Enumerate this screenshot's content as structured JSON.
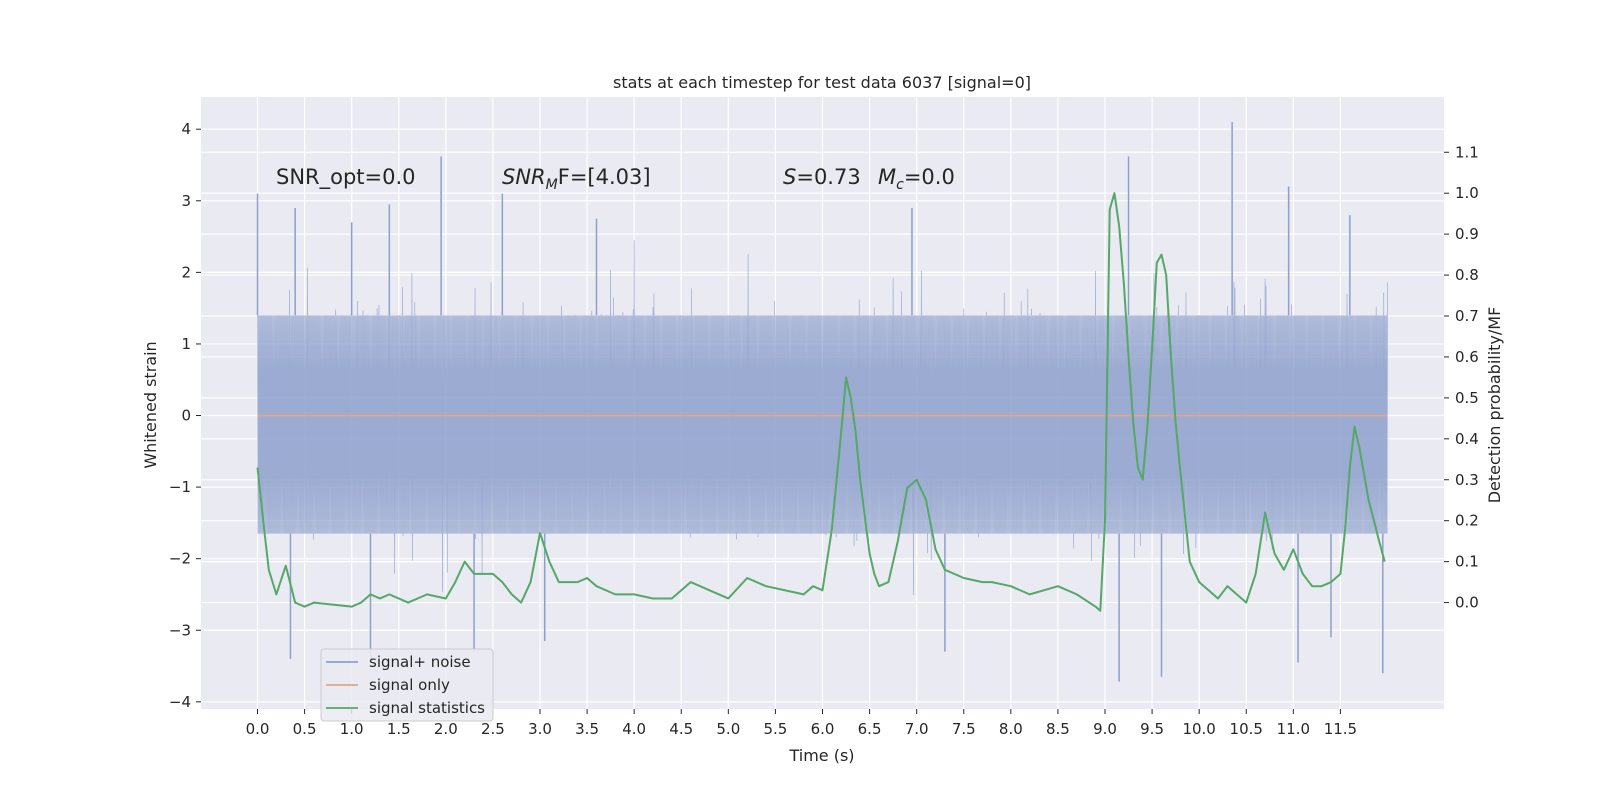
{
  "chart_data": {
    "type": "line",
    "title": "stats at each timestep for test data 6037 [signal=0]",
    "xlabel": "Time (s)",
    "ylabel": "Whitened strain",
    "y2label": "Detection probability/MF",
    "xlim": [
      -0.6,
      12.6
    ],
    "ylim": [
      -4.1,
      4.45
    ],
    "y2lim": [
      -0.26,
      1.235
    ],
    "x_ticks": [
      0.0,
      0.5,
      1.0,
      1.5,
      2.0,
      2.5,
      3.0,
      3.5,
      4.0,
      4.5,
      5.0,
      5.5,
      6.0,
      6.5,
      7.0,
      7.5,
      8.0,
      8.5,
      9.0,
      9.5,
      10.0,
      10.5,
      11.0,
      11.5
    ],
    "x_tick_labels": [
      "0.0",
      "0.5",
      "1.0",
      "1.5",
      "2.0",
      "2.5",
      "3.0",
      "3.5",
      "4.0",
      "4.5",
      "5.0",
      "5.5",
      "6.0",
      "6.5",
      "7.0",
      "7.5",
      "8.0",
      "8.5",
      "9.0",
      "9.5",
      "10.0",
      "10.5",
      "11.0",
      "11.5"
    ],
    "y_ticks": [
      -4,
      -3,
      -2,
      -1,
      0,
      1,
      2,
      3,
      4
    ],
    "y_tick_labels": [
      "−4",
      "−3",
      "−2",
      "−1",
      "0",
      "1",
      "2",
      "3",
      "4"
    ],
    "y2_ticks": [
      0.0,
      0.1,
      0.2,
      0.3,
      0.4,
      0.5,
      0.6,
      0.7,
      0.8,
      0.9,
      1.0,
      1.1
    ],
    "y2_tick_labels": [
      "0.0",
      "0.1",
      "0.2",
      "0.3",
      "0.4",
      "0.5",
      "0.6",
      "0.7",
      "0.8",
      "0.9",
      "1.0",
      "1.1"
    ],
    "grid": true,
    "legend_position": "lower-left",
    "annotations": {
      "snr_opt": "SNR_opt=0.0",
      "snr_mf_prefix": "SNR",
      "snr_mf_sub": "M",
      "snr_mf_suffix": "F=[4.03]",
      "s_prefix": "S",
      "s_suffix": "=0.73",
      "mc_prefix": "M",
      "mc_sub": "c",
      "mc_suffix": "=0.0"
    },
    "series": [
      {
        "name": "signal+ noise",
        "axis": "left",
        "color": "#8da0cb",
        "kind": "noise",
        "x_range": [
          0.0,
          12.0
        ],
        "typical_envelope": [
          -1.65,
          1.4
        ],
        "spike_peaks": [
          {
            "x": 0.0,
            "y": 3.1
          },
          {
            "x": 0.4,
            "y": 2.9
          },
          {
            "x": 1.0,
            "y": 2.7
          },
          {
            "x": 1.4,
            "y": 2.95
          },
          {
            "x": 1.95,
            "y": 3.62
          },
          {
            "x": 2.6,
            "y": 3.1
          },
          {
            "x": 3.6,
            "y": 2.75
          },
          {
            "x": 6.95,
            "y": 2.9
          },
          {
            "x": 9.25,
            "y": 3.62
          },
          {
            "x": 10.35,
            "y": 4.1
          },
          {
            "x": 10.95,
            "y": 3.2
          },
          {
            "x": 11.6,
            "y": 2.8
          },
          {
            "x": 0.35,
            "y": -3.4
          },
          {
            "x": 1.2,
            "y": -3.4
          },
          {
            "x": 2.3,
            "y": -3.3
          },
          {
            "x": 3.05,
            "y": -3.15
          },
          {
            "x": 7.3,
            "y": -3.3
          },
          {
            "x": 9.15,
            "y": -3.72
          },
          {
            "x": 9.6,
            "y": -3.65
          },
          {
            "x": 11.05,
            "y": -3.45
          },
          {
            "x": 11.4,
            "y": -3.1
          },
          {
            "x": 11.95,
            "y": -3.6
          }
        ]
      },
      {
        "name": "signal only",
        "axis": "left",
        "color": "#e5a582",
        "x": [
          0.0,
          12.0
        ],
        "y": [
          0.0,
          0.0
        ]
      },
      {
        "name": "signal statistics",
        "axis": "right",
        "color": "#55a868",
        "x": [
          0.0,
          0.06,
          0.12,
          0.2,
          0.3,
          0.4,
          0.5,
          0.6,
          0.8,
          1.0,
          1.1,
          1.2,
          1.3,
          1.4,
          1.6,
          1.8,
          2.0,
          2.1,
          2.2,
          2.3,
          2.4,
          2.5,
          2.6,
          2.7,
          2.8,
          2.9,
          3.0,
          3.1,
          3.2,
          3.3,
          3.4,
          3.5,
          3.6,
          3.8,
          4.0,
          4.2,
          4.4,
          4.6,
          4.8,
          5.0,
          5.2,
          5.4,
          5.6,
          5.8,
          5.9,
          6.0,
          6.1,
          6.2,
          6.25,
          6.3,
          6.35,
          6.4,
          6.5,
          6.55,
          6.6,
          6.7,
          6.8,
          6.9,
          7.0,
          7.1,
          7.2,
          7.3,
          7.5,
          7.7,
          7.8,
          8.0,
          8.2,
          8.5,
          8.7,
          8.9,
          8.95,
          9.0,
          9.05,
          9.1,
          9.15,
          9.2,
          9.25,
          9.3,
          9.35,
          9.4,
          9.45,
          9.5,
          9.55,
          9.6,
          9.65,
          9.7,
          9.75,
          9.8,
          9.85,
          9.9,
          10.0,
          10.1,
          10.2,
          10.3,
          10.4,
          10.5,
          10.6,
          10.7,
          10.8,
          10.9,
          11.0,
          11.05,
          11.1,
          11.2,
          11.3,
          11.4,
          11.5,
          11.55,
          11.6,
          11.65,
          11.7,
          11.8,
          11.9,
          11.97
        ],
        "y": [
          0.33,
          0.2,
          0.08,
          0.02,
          0.09,
          0.0,
          -0.01,
          0.0,
          -0.005,
          -0.01,
          0.0,
          0.02,
          0.01,
          0.02,
          0.0,
          0.02,
          0.01,
          0.05,
          0.1,
          0.07,
          0.07,
          0.07,
          0.05,
          0.02,
          0.0,
          0.05,
          0.17,
          0.1,
          0.05,
          0.05,
          0.05,
          0.06,
          0.04,
          0.02,
          0.02,
          0.01,
          0.01,
          0.05,
          0.03,
          0.01,
          0.06,
          0.04,
          0.03,
          0.02,
          0.04,
          0.03,
          0.18,
          0.42,
          0.55,
          0.5,
          0.42,
          0.3,
          0.12,
          0.07,
          0.04,
          0.05,
          0.15,
          0.28,
          0.3,
          0.25,
          0.13,
          0.08,
          0.06,
          0.05,
          0.05,
          0.04,
          0.02,
          0.04,
          0.02,
          -0.01,
          -0.02,
          0.2,
          0.96,
          1.0,
          0.92,
          0.78,
          0.6,
          0.44,
          0.33,
          0.3,
          0.43,
          0.62,
          0.83,
          0.85,
          0.8,
          0.6,
          0.44,
          0.32,
          0.21,
          0.1,
          0.05,
          0.03,
          0.01,
          0.04,
          0.02,
          0.0,
          0.07,
          0.22,
          0.12,
          0.08,
          0.13,
          0.1,
          0.07,
          0.04,
          0.04,
          0.05,
          0.07,
          0.18,
          0.33,
          0.43,
          0.38,
          0.25,
          0.16,
          0.1
        ]
      }
    ]
  }
}
